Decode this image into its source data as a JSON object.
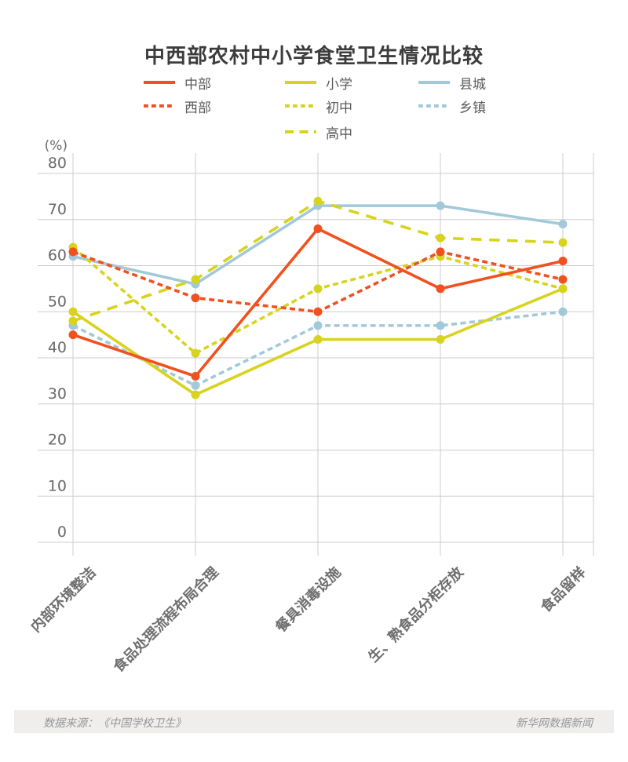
{
  "title": "中西部农村中小学食堂卫生情况比较",
  "footer": {
    "source": "数据来源：《中国学校卫生》",
    "credit": "新华网数据新闻"
  },
  "colors": {
    "orange": "#f0511f",
    "yellow": "#d7d31e",
    "blue": "#a2c9d9",
    "grid": "#cdcdcd",
    "axis_text": "#696969",
    "footer_bg": "#efeeec"
  },
  "chart_data": {
    "type": "line",
    "title": "中西部农村中小学食堂卫生情况比较",
    "unit_label": "(%)",
    "categories": [
      "内部环境整洁",
      "食品处理流程布局合理",
      "餐具消毒设施",
      "生、熟食品分柜存放",
      "食品留样"
    ],
    "y_axis": {
      "ticks": [
        80,
        70,
        60,
        50,
        40,
        30,
        20,
        10,
        0
      ],
      "min": 0,
      "max": 80,
      "grid": true
    },
    "legend_position": "top",
    "legend_columns": [
      [
        "中部",
        "西部"
      ],
      [
        "小学",
        "初中",
        "高中"
      ],
      [
        "县城",
        "乡镇"
      ]
    ],
    "series": [
      {
        "name": "中部",
        "color": "#f0511f",
        "dash": "solid",
        "values": [
          45,
          36,
          68,
          55,
          61
        ]
      },
      {
        "name": "西部",
        "color": "#f0511f",
        "dash": "short",
        "values": [
          63,
          53,
          50,
          63,
          57
        ]
      },
      {
        "name": "小学",
        "color": "#d7d31e",
        "dash": "solid",
        "values": [
          50,
          32,
          44,
          44,
          55
        ]
      },
      {
        "name": "初中",
        "color": "#d7d31e",
        "dash": "short",
        "values": [
          64,
          41,
          55,
          62,
          55
        ]
      },
      {
        "name": "高中",
        "color": "#d7d31e",
        "dash": "long",
        "values": [
          48,
          57,
          74,
          66,
          65
        ]
      },
      {
        "name": "县城",
        "color": "#a2c9d9",
        "dash": "solid",
        "values": [
          62,
          56,
          73,
          73,
          69
        ]
      },
      {
        "name": "乡镇",
        "color": "#a2c9d9",
        "dash": "short",
        "values": [
          47,
          34,
          47,
          47,
          50
        ]
      }
    ]
  }
}
